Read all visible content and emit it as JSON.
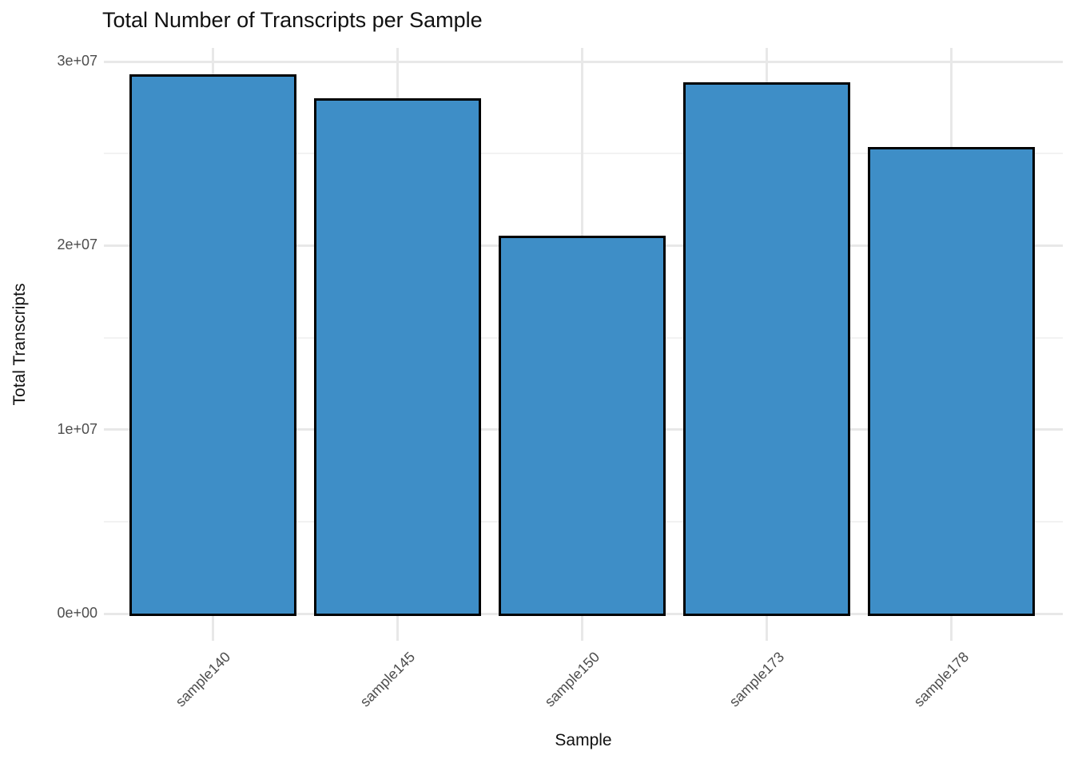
{
  "chart_data": {
    "type": "bar",
    "title": "Total Number of Transcripts per Sample",
    "xlabel": "Sample",
    "ylabel": "Total Transcripts",
    "categories": [
      "sample140",
      "sample145",
      "sample150",
      "sample173",
      "sample178"
    ],
    "values": [
      29300000,
      28000000,
      20540000,
      28860000,
      25340000
    ],
    "y_ticks": [
      {
        "value": 0,
        "label": "0e+00"
      },
      {
        "value": 10000000,
        "label": "1e+07"
      },
      {
        "value": 20000000,
        "label": "2e+07"
      },
      {
        "value": 30000000,
        "label": "3e+07"
      }
    ],
    "y_minor_ticks": [
      5000000,
      15000000,
      25000000
    ],
    "ylim": [
      -1540000,
      30800000
    ],
    "grid": "horizontal major+minor, vertical major at category centers",
    "legend": "none",
    "colors": {
      "bar_fill": "#3E8EC7",
      "bar_border": "#000000",
      "grid_major": "#E8E8E8",
      "grid_minor": "#F2F2F2",
      "tick_label": "#4D4D4D",
      "axis_title": "#111111",
      "title": "#111111",
      "background": "#FFFFFF"
    }
  }
}
